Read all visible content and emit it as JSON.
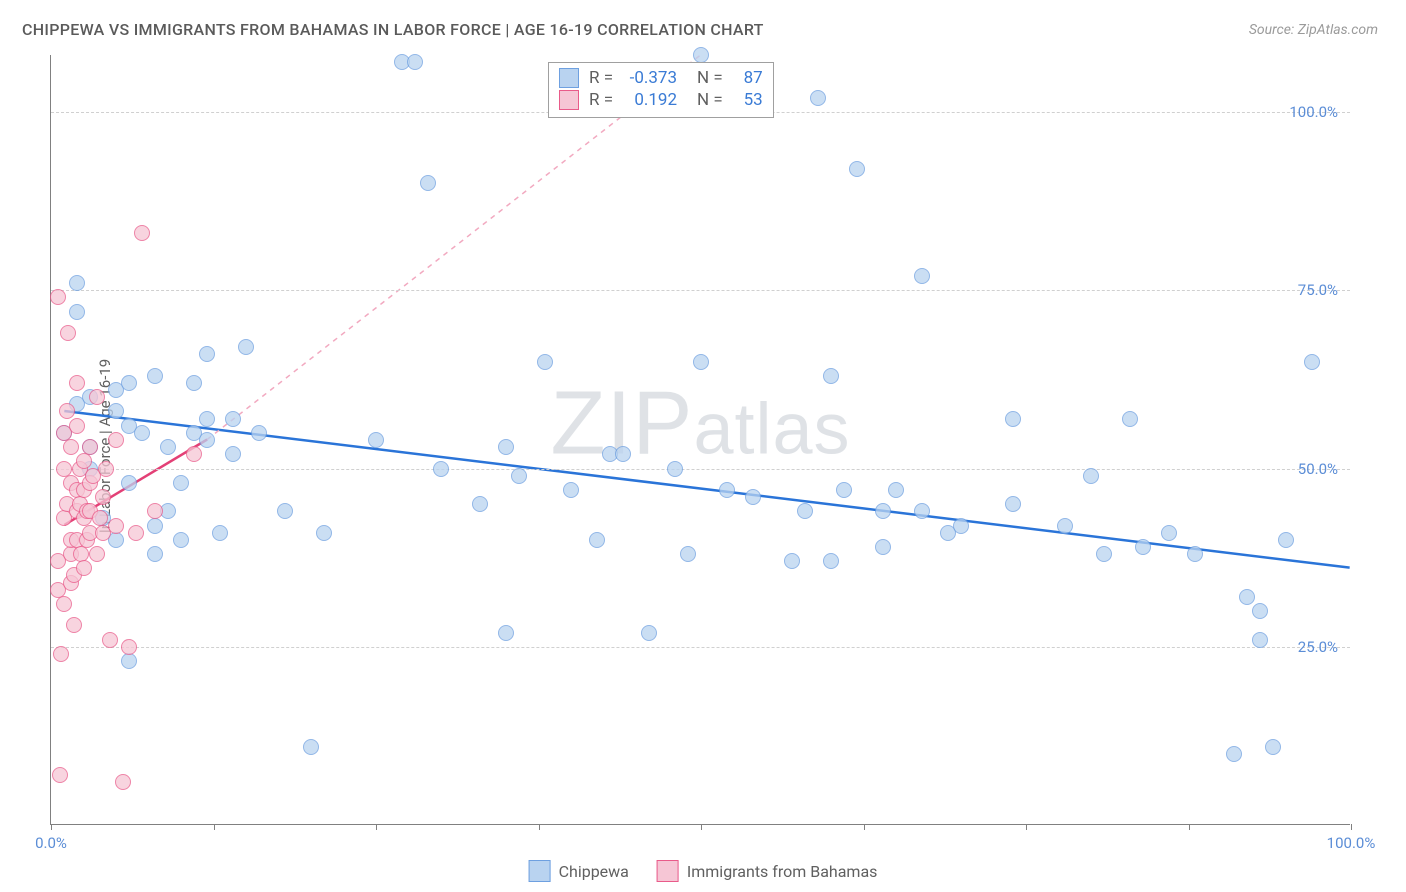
{
  "chart": {
    "type": "scatter",
    "title": "CHIPPEWA VS IMMIGRANTS FROM BAHAMAS IN LABOR FORCE | AGE 16-19 CORRELATION CHART",
    "source": "Source: ZipAtlas.com",
    "ylabel": "In Labor Force | Age 16-19",
    "watermark": "ZIPatlas",
    "background_color": "#ffffff",
    "grid_color": "#d0d0d0",
    "axis_color": "#808080",
    "tick_label_color": "#5b8dd6",
    "xlim": [
      0,
      100
    ],
    "ylim": [
      0,
      108
    ],
    "x_ticks": [
      0,
      12.5,
      25,
      37.5,
      50,
      62.5,
      75,
      87.5,
      100
    ],
    "x_tick_labels": {
      "0": "0.0%",
      "100": "100.0%"
    },
    "y_gridlines": [
      25,
      50,
      75,
      100
    ],
    "y_tick_labels": {
      "25": "25.0%",
      "50": "50.0%",
      "75": "75.0%",
      "100": "100.0%"
    },
    "series": [
      {
        "name": "Chippewa",
        "color_fill": "#b9d3f0",
        "color_stroke": "#6ea0e0",
        "marker_size": 16,
        "marker_opacity": 0.75,
        "R": "-0.373",
        "N": "87",
        "trend": {
          "x1": 1,
          "y1": 58,
          "x2": 100,
          "y2": 36,
          "color": "#2a74d8",
          "width": 2.5,
          "dash": "none"
        },
        "trend_ext": null,
        "points": [
          [
            1,
            55
          ],
          [
            2,
            59
          ],
          [
            2,
            72
          ],
          [
            2,
            76
          ],
          [
            3,
            50
          ],
          [
            3,
            60
          ],
          [
            3,
            53
          ],
          [
            4,
            43
          ],
          [
            5,
            61
          ],
          [
            5,
            58
          ],
          [
            5,
            40
          ],
          [
            6,
            23
          ],
          [
            6,
            62
          ],
          [
            6,
            48
          ],
          [
            6,
            56
          ],
          [
            7,
            55
          ],
          [
            8,
            38
          ],
          [
            8,
            42
          ],
          [
            8,
            63
          ],
          [
            9,
            44
          ],
          [
            9,
            53
          ],
          [
            10,
            48
          ],
          [
            10,
            40
          ],
          [
            11,
            55
          ],
          [
            11,
            62
          ],
          [
            12,
            66
          ],
          [
            12,
            54
          ],
          [
            12,
            57
          ],
          [
            13,
            41
          ],
          [
            14,
            52
          ],
          [
            14,
            57
          ],
          [
            15,
            67
          ],
          [
            16,
            55
          ],
          [
            18,
            44
          ],
          [
            20,
            11
          ],
          [
            21,
            41
          ],
          [
            25,
            54
          ],
          [
            27,
            107
          ],
          [
            28,
            107
          ],
          [
            29,
            90
          ],
          [
            30,
            50
          ],
          [
            33,
            45
          ],
          [
            35,
            27
          ],
          [
            35,
            53
          ],
          [
            36,
            49
          ],
          [
            38,
            65
          ],
          [
            40,
            47
          ],
          [
            42,
            40
          ],
          [
            43,
            52
          ],
          [
            44,
            52
          ],
          [
            46,
            27
          ],
          [
            48,
            50
          ],
          [
            49,
            38
          ],
          [
            50,
            108
          ],
          [
            50,
            65
          ],
          [
            52,
            47
          ],
          [
            54,
            46
          ],
          [
            57,
            37
          ],
          [
            58,
            44
          ],
          [
            59,
            102
          ],
          [
            60,
            63
          ],
          [
            60,
            37
          ],
          [
            61,
            47
          ],
          [
            62,
            92
          ],
          [
            64,
            39
          ],
          [
            64,
            44
          ],
          [
            65,
            47
          ],
          [
            67,
            44
          ],
          [
            67,
            77
          ],
          [
            69,
            41
          ],
          [
            70,
            42
          ],
          [
            74,
            45
          ],
          [
            74,
            57
          ],
          [
            78,
            42
          ],
          [
            80,
            49
          ],
          [
            81,
            38
          ],
          [
            83,
            57
          ],
          [
            84,
            39
          ],
          [
            86,
            41
          ],
          [
            88,
            38
          ],
          [
            91,
            10
          ],
          [
            92,
            32
          ],
          [
            93,
            26
          ],
          [
            93,
            30
          ],
          [
            94,
            11
          ],
          [
            95,
            40
          ],
          [
            97,
            65
          ]
        ]
      },
      {
        "name": "Immigrants from Bahamas",
        "color_fill": "#f6c6d5",
        "color_stroke": "#e95b8a",
        "marker_size": 16,
        "marker_opacity": 0.75,
        "R": "0.192",
        "N": "53",
        "trend": {
          "x1": 1,
          "y1": 42,
          "x2": 12,
          "y2": 54,
          "color": "#e34076",
          "width": 2.5,
          "dash": "none"
        },
        "trend_ext": {
          "x1": 12,
          "y1": 54,
          "x2": 50,
          "y2": 108,
          "color": "#f2a9c0",
          "width": 1.5,
          "dash": "5,5"
        },
        "points": [
          [
            0.5,
            37
          ],
          [
            0.5,
            33
          ],
          [
            0.5,
            74
          ],
          [
            0.7,
            7
          ],
          [
            0.8,
            24
          ],
          [
            1,
            55
          ],
          [
            1,
            43
          ],
          [
            1,
            31
          ],
          [
            1,
            50
          ],
          [
            1.2,
            58
          ],
          [
            1.2,
            45
          ],
          [
            1.3,
            69
          ],
          [
            1.5,
            38
          ],
          [
            1.5,
            48
          ],
          [
            1.5,
            53
          ],
          [
            1.5,
            40
          ],
          [
            1.5,
            34
          ],
          [
            1.8,
            28
          ],
          [
            1.8,
            35
          ],
          [
            2,
            47
          ],
          [
            2,
            44
          ],
          [
            2,
            62
          ],
          [
            2,
            56
          ],
          [
            2,
            40
          ],
          [
            2.2,
            45
          ],
          [
            2.2,
            50
          ],
          [
            2.3,
            38
          ],
          [
            2.5,
            43
          ],
          [
            2.5,
            36
          ],
          [
            2.5,
            47
          ],
          [
            2.5,
            51
          ],
          [
            2.8,
            44
          ],
          [
            2.8,
            40
          ],
          [
            3,
            53
          ],
          [
            3,
            44
          ],
          [
            3,
            48
          ],
          [
            3,
            41
          ],
          [
            3.2,
            49
          ],
          [
            3.5,
            38
          ],
          [
            3.5,
            60
          ],
          [
            3.8,
            43
          ],
          [
            4,
            46
          ],
          [
            4,
            41
          ],
          [
            4.2,
            50
          ],
          [
            4.5,
            26
          ],
          [
            5,
            42
          ],
          [
            5,
            54
          ],
          [
            5.5,
            6
          ],
          [
            6,
            25
          ],
          [
            6.5,
            41
          ],
          [
            7,
            83
          ],
          [
            8,
            44
          ],
          [
            11,
            52
          ]
        ]
      }
    ],
    "legend": {
      "items": [
        {
          "label": "Chippewa",
          "fill": "#b9d3f0",
          "stroke": "#6ea0e0"
        },
        {
          "label": "Immigrants from Bahamas",
          "fill": "#f6c6d5",
          "stroke": "#e95b8a"
        }
      ]
    }
  }
}
